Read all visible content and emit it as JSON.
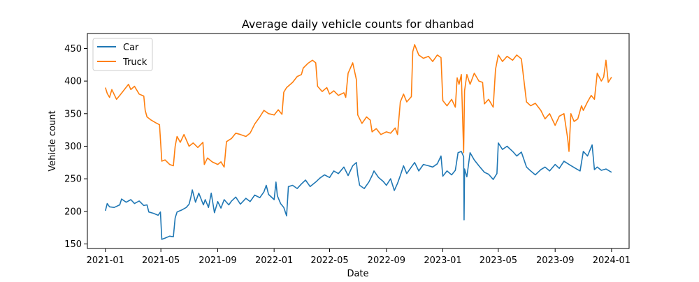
{
  "chart_data": {
    "type": "line",
    "title": "Average daily vehicle counts for dhanbad",
    "xlabel": "Date",
    "ylabel": "Vehicle count",
    "x_tick_labels": [
      "2021-01",
      "2021-05",
      "2021-09",
      "2022-01",
      "2022-05",
      "2022-09",
      "2023-01",
      "2023-05",
      "2023-09",
      "2024-01"
    ],
    "x_tick_dates": [
      "2021-01-01",
      "2021-05-01",
      "2021-09-01",
      "2022-01-01",
      "2022-05-01",
      "2022-09-01",
      "2023-01-01",
      "2023-05-01",
      "2023-09-01",
      "2024-01-01"
    ],
    "xlim": [
      "2020-11-23",
      "2024-02-08"
    ],
    "y_ticks": [
      150,
      200,
      250,
      300,
      350,
      400,
      450
    ],
    "ylim": [
      143,
      473
    ],
    "legend": {
      "position": "top-left",
      "entries": [
        "Car",
        "Truck"
      ]
    },
    "grid": false,
    "series": [
      {
        "name": "Car",
        "color": "#1f77b4",
        "points": [
          [
            "2021-01-01",
            201
          ],
          [
            "2021-01-05",
            212
          ],
          [
            "2021-01-10",
            207
          ],
          [
            "2021-01-20",
            206
          ],
          [
            "2021-02-01",
            210
          ],
          [
            "2021-02-05",
            219
          ],
          [
            "2021-02-15",
            214
          ],
          [
            "2021-02-25",
            218
          ],
          [
            "2021-03-05",
            212
          ],
          [
            "2021-03-15",
            216
          ],
          [
            "2021-03-25",
            209
          ],
          [
            "2021-04-01",
            210
          ],
          [
            "2021-04-05",
            199
          ],
          [
            "2021-04-15",
            197
          ],
          [
            "2021-04-25",
            194
          ],
          [
            "2021-04-30",
            199
          ],
          [
            "2021-05-03",
            157
          ],
          [
            "2021-05-10",
            159
          ],
          [
            "2021-05-20",
            162
          ],
          [
            "2021-05-28",
            161
          ],
          [
            "2021-06-01",
            190
          ],
          [
            "2021-06-05",
            199
          ],
          [
            "2021-06-15",
            202
          ],
          [
            "2021-06-25",
            206
          ],
          [
            "2021-07-01",
            211
          ],
          [
            "2021-07-05",
            222
          ],
          [
            "2021-07-08",
            233
          ],
          [
            "2021-07-15",
            214
          ],
          [
            "2021-07-22",
            228
          ],
          [
            "2021-08-01",
            210
          ],
          [
            "2021-08-05",
            218
          ],
          [
            "2021-08-12",
            206
          ],
          [
            "2021-08-18",
            228
          ],
          [
            "2021-08-25",
            198
          ],
          [
            "2021-09-01",
            215
          ],
          [
            "2021-09-08",
            205
          ],
          [
            "2021-09-15",
            218
          ],
          [
            "2021-09-25",
            210
          ],
          [
            "2021-10-01",
            216
          ],
          [
            "2021-10-10",
            222
          ],
          [
            "2021-10-20",
            211
          ],
          [
            "2021-11-01",
            220
          ],
          [
            "2021-11-10",
            215
          ],
          [
            "2021-11-20",
            225
          ],
          [
            "2021-12-01",
            221
          ],
          [
            "2021-12-10",
            230
          ],
          [
            "2021-12-15",
            240
          ],
          [
            "2021-12-20",
            226
          ],
          [
            "2022-01-01",
            218
          ],
          [
            "2022-01-05",
            245
          ],
          [
            "2022-01-08",
            224
          ],
          [
            "2022-01-15",
            212
          ],
          [
            "2022-01-22",
            206
          ],
          [
            "2022-01-28",
            193
          ],
          [
            "2022-02-01",
            238
          ],
          [
            "2022-02-10",
            240
          ],
          [
            "2022-02-20",
            235
          ],
          [
            "2022-03-01",
            242
          ],
          [
            "2022-03-10",
            248
          ],
          [
            "2022-03-20",
            238
          ],
          [
            "2022-04-01",
            245
          ],
          [
            "2022-04-10",
            251
          ],
          [
            "2022-04-20",
            256
          ],
          [
            "2022-05-01",
            252
          ],
          [
            "2022-05-10",
            262
          ],
          [
            "2022-05-20",
            258
          ],
          [
            "2022-06-01",
            268
          ],
          [
            "2022-06-10",
            255
          ],
          [
            "2022-06-20",
            270
          ],
          [
            "2022-06-28",
            275
          ],
          [
            "2022-07-01",
            256
          ],
          [
            "2022-07-05",
            240
          ],
          [
            "2022-07-15",
            235
          ],
          [
            "2022-07-25",
            245
          ],
          [
            "2022-08-01",
            255
          ],
          [
            "2022-08-05",
            262
          ],
          [
            "2022-08-15",
            252
          ],
          [
            "2022-08-25",
            246
          ],
          [
            "2022-09-01",
            240
          ],
          [
            "2022-09-10",
            250
          ],
          [
            "2022-09-18",
            232
          ],
          [
            "2022-09-25",
            243
          ],
          [
            "2022-10-01",
            255
          ],
          [
            "2022-10-08",
            270
          ],
          [
            "2022-10-15",
            258
          ],
          [
            "2022-10-25",
            268
          ],
          [
            "2022-11-01",
            275
          ],
          [
            "2022-11-10",
            262
          ],
          [
            "2022-11-20",
            272
          ],
          [
            "2022-12-01",
            270
          ],
          [
            "2022-12-10",
            268
          ],
          [
            "2022-12-20",
            273
          ],
          [
            "2022-12-28",
            285
          ],
          [
            "2023-01-01",
            254
          ],
          [
            "2023-01-10",
            262
          ],
          [
            "2023-01-20",
            256
          ],
          [
            "2023-01-28",
            263
          ],
          [
            "2023-02-03",
            290
          ],
          [
            "2023-02-10",
            292
          ],
          [
            "2023-02-15",
            284
          ],
          [
            "2023-02-16",
            187
          ],
          [
            "2023-02-17",
            265
          ],
          [
            "2023-02-22",
            253
          ],
          [
            "2023-03-01",
            290
          ],
          [
            "2023-03-10",
            279
          ],
          [
            "2023-03-20",
            270
          ],
          [
            "2023-04-01",
            260
          ],
          [
            "2023-04-10",
            257
          ],
          [
            "2023-04-20",
            249
          ],
          [
            "2023-04-28",
            258
          ],
          [
            "2023-05-01",
            305
          ],
          [
            "2023-05-10",
            295
          ],
          [
            "2023-05-20",
            300
          ],
          [
            "2023-06-01",
            292
          ],
          [
            "2023-06-10",
            285
          ],
          [
            "2023-06-20",
            291
          ],
          [
            "2023-07-01",
            268
          ],
          [
            "2023-07-10",
            262
          ],
          [
            "2023-07-20",
            256
          ],
          [
            "2023-08-01",
            264
          ],
          [
            "2023-08-10",
            268
          ],
          [
            "2023-08-20",
            262
          ],
          [
            "2023-09-01",
            272
          ],
          [
            "2023-09-10",
            266
          ],
          [
            "2023-09-20",
            277
          ],
          [
            "2023-10-01",
            272
          ],
          [
            "2023-10-15",
            266
          ],
          [
            "2023-10-25",
            262
          ],
          [
            "2023-11-01",
            292
          ],
          [
            "2023-11-10",
            285
          ],
          [
            "2023-11-20",
            302
          ],
          [
            "2023-11-25",
            264
          ],
          [
            "2023-12-01",
            268
          ],
          [
            "2023-12-10",
            263
          ],
          [
            "2023-12-20",
            265
          ],
          [
            "2024-01-01",
            260
          ]
        ]
      },
      {
        "name": "Truck",
        "color": "#ff7f0e",
        "points": [
          [
            "2021-01-01",
            390
          ],
          [
            "2021-01-05",
            381
          ],
          [
            "2021-01-10",
            375
          ],
          [
            "2021-01-15",
            387
          ],
          [
            "2021-01-25",
            372
          ],
          [
            "2021-02-01",
            378
          ],
          [
            "2021-02-10",
            386
          ],
          [
            "2021-02-20",
            395
          ],
          [
            "2021-02-25",
            387
          ],
          [
            "2021-03-05",
            392
          ],
          [
            "2021-03-15",
            380
          ],
          [
            "2021-03-25",
            377
          ],
          [
            "2021-03-28",
            355
          ],
          [
            "2021-04-01",
            345
          ],
          [
            "2021-04-10",
            340
          ],
          [
            "2021-04-20",
            336
          ],
          [
            "2021-04-28",
            333
          ],
          [
            "2021-05-03",
            277
          ],
          [
            "2021-05-10",
            279
          ],
          [
            "2021-05-20",
            272
          ],
          [
            "2021-05-28",
            270
          ],
          [
            "2021-06-01",
            300
          ],
          [
            "2021-06-05",
            315
          ],
          [
            "2021-06-12",
            306
          ],
          [
            "2021-06-20",
            318
          ],
          [
            "2021-07-01",
            300
          ],
          [
            "2021-07-10",
            305
          ],
          [
            "2021-07-20",
            298
          ],
          [
            "2021-07-31",
            306
          ],
          [
            "2021-08-03",
            272
          ],
          [
            "2021-08-10",
            282
          ],
          [
            "2021-08-20",
            276
          ],
          [
            "2021-09-01",
            272
          ],
          [
            "2021-09-08",
            276
          ],
          [
            "2021-09-15",
            268
          ],
          [
            "2021-09-20",
            307
          ],
          [
            "2021-10-01",
            312
          ],
          [
            "2021-10-10",
            320
          ],
          [
            "2021-10-20",
            318
          ],
          [
            "2021-11-01",
            315
          ],
          [
            "2021-11-10",
            320
          ],
          [
            "2021-11-20",
            334
          ],
          [
            "2021-12-01",
            345
          ],
          [
            "2021-12-10",
            355
          ],
          [
            "2021-12-20",
            350
          ],
          [
            "2022-01-01",
            348
          ],
          [
            "2022-01-10",
            356
          ],
          [
            "2022-01-18",
            349
          ],
          [
            "2022-01-22",
            383
          ],
          [
            "2022-01-28",
            390
          ],
          [
            "2022-02-10",
            398
          ],
          [
            "2022-02-20",
            407
          ],
          [
            "2022-03-01",
            410
          ],
          [
            "2022-03-05",
            420
          ],
          [
            "2022-03-15",
            427
          ],
          [
            "2022-03-25",
            432
          ],
          [
            "2022-04-01",
            428
          ],
          [
            "2022-04-05",
            392
          ],
          [
            "2022-04-15",
            384
          ],
          [
            "2022-04-25",
            390
          ],
          [
            "2022-05-01",
            380
          ],
          [
            "2022-05-10",
            385
          ],
          [
            "2022-05-20",
            378
          ],
          [
            "2022-06-01",
            382
          ],
          [
            "2022-06-05",
            375
          ],
          [
            "2022-06-10",
            412
          ],
          [
            "2022-06-20",
            428
          ],
          [
            "2022-06-28",
            402
          ],
          [
            "2022-07-01",
            348
          ],
          [
            "2022-07-10",
            335
          ],
          [
            "2022-07-20",
            345
          ],
          [
            "2022-07-28",
            340
          ],
          [
            "2022-08-01",
            322
          ],
          [
            "2022-08-10",
            327
          ],
          [
            "2022-08-20",
            318
          ],
          [
            "2022-09-01",
            322
          ],
          [
            "2022-09-10",
            320
          ],
          [
            "2022-09-20",
            328
          ],
          [
            "2022-09-25",
            318
          ],
          [
            "2022-10-01",
            368
          ],
          [
            "2022-10-08",
            380
          ],
          [
            "2022-10-15",
            368
          ],
          [
            "2022-10-25",
            376
          ],
          [
            "2022-10-28",
            445
          ],
          [
            "2022-11-01",
            456
          ],
          [
            "2022-11-10",
            440
          ],
          [
            "2022-11-20",
            435
          ],
          [
            "2022-12-01",
            438
          ],
          [
            "2022-12-10",
            430
          ],
          [
            "2022-12-20",
            440
          ],
          [
            "2022-12-28",
            436
          ],
          [
            "2023-01-01",
            370
          ],
          [
            "2023-01-10",
            362
          ],
          [
            "2023-01-20",
            372
          ],
          [
            "2023-01-28",
            360
          ],
          [
            "2023-02-01",
            405
          ],
          [
            "2023-02-05",
            395
          ],
          [
            "2023-02-10",
            410
          ],
          [
            "2023-02-15",
            290
          ],
          [
            "2023-02-17",
            385
          ],
          [
            "2023-02-22",
            410
          ],
          [
            "2023-03-01",
            395
          ],
          [
            "2023-03-10",
            412
          ],
          [
            "2023-03-20",
            400
          ],
          [
            "2023-03-28",
            398
          ],
          [
            "2023-04-01",
            365
          ],
          [
            "2023-04-10",
            372
          ],
          [
            "2023-04-20",
            360
          ],
          [
            "2023-04-25",
            418
          ],
          [
            "2023-05-01",
            440
          ],
          [
            "2023-05-10",
            430
          ],
          [
            "2023-05-20",
            438
          ],
          [
            "2023-06-01",
            432
          ],
          [
            "2023-06-10",
            440
          ],
          [
            "2023-06-20",
            434
          ],
          [
            "2023-07-01",
            368
          ],
          [
            "2023-07-10",
            362
          ],
          [
            "2023-07-20",
            366
          ],
          [
            "2023-08-01",
            355
          ],
          [
            "2023-08-10",
            342
          ],
          [
            "2023-08-20",
            350
          ],
          [
            "2023-09-01",
            332
          ],
          [
            "2023-09-10",
            346
          ],
          [
            "2023-09-20",
            350
          ],
          [
            "2023-09-28",
            312
          ],
          [
            "2023-10-01",
            292
          ],
          [
            "2023-10-05",
            350
          ],
          [
            "2023-10-12",
            338
          ],
          [
            "2023-10-20",
            342
          ],
          [
            "2023-10-28",
            362
          ],
          [
            "2023-11-01",
            355
          ],
          [
            "2023-11-10",
            368
          ],
          [
            "2023-11-18",
            378
          ],
          [
            "2023-11-25",
            372
          ],
          [
            "2023-12-01",
            412
          ],
          [
            "2023-12-10",
            400
          ],
          [
            "2023-12-15",
            406
          ],
          [
            "2023-12-20",
            432
          ],
          [
            "2023-12-25",
            398
          ],
          [
            "2024-01-01",
            406
          ]
        ]
      }
    ]
  }
}
